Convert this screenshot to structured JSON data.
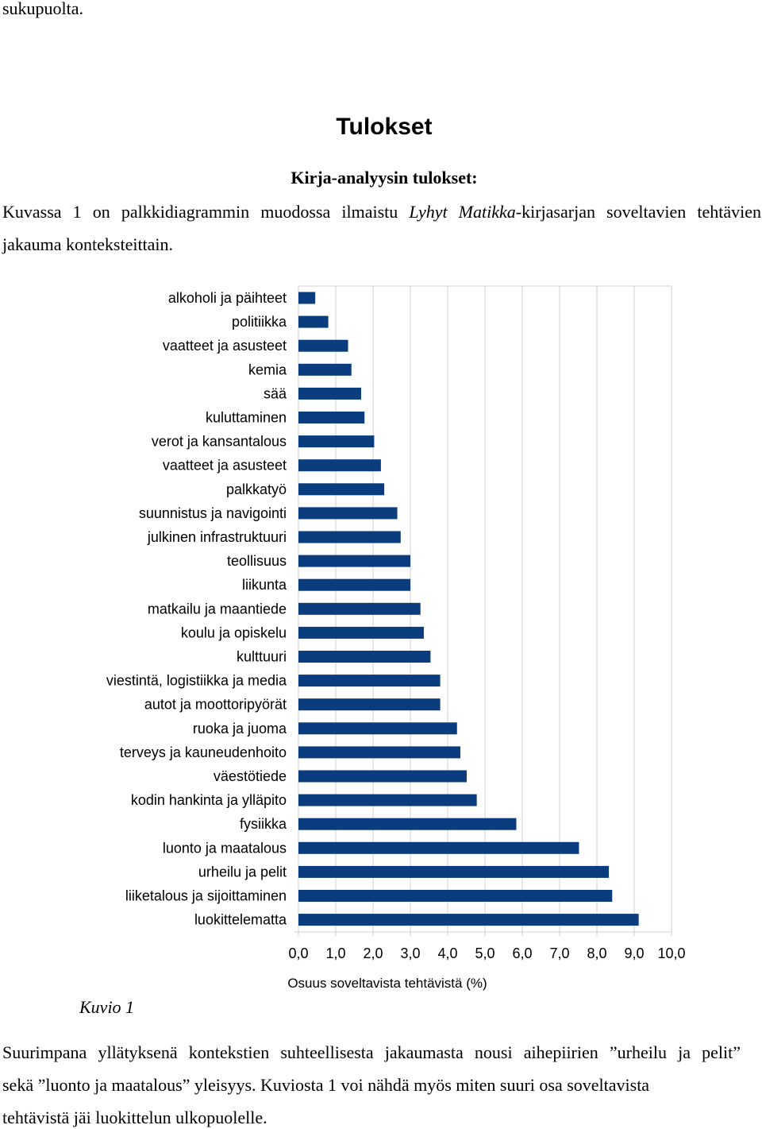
{
  "document": {
    "top_fragment": "sukupuolta.",
    "section_title": "Tulokset",
    "sub_heading": "Kirja-analyysin tulokset:",
    "intro": {
      "before_series": "Kuvassa 1 on palkkidiagrammin muodossa ilmaistu ",
      "series_name": "Lyhyt Matikka",
      "after_series": "-kirjasarjan soveltavien tehtävien",
      "line2": "jakauma konteksteittain."
    },
    "figure_caption": "Kuvio 1",
    "conclusion": {
      "line1": "Suurimpana yllätyksenä kontekstien suhteellisesta jakaumasta nousi aihepiirien ”urheilu ja pelit”",
      "line2": "sekä ”luonto ja maatalous” yleisyys. Kuviosta 1 voi nähdä myös miten suuri osa soveltavista",
      "line3": "tehtävistä jäi luokittelun ulkopuolelle."
    }
  },
  "chart_data": {
    "type": "bar",
    "orientation": "horizontal",
    "bar_color": "#0b3c7d",
    "grid_color": "#d0d0d0",
    "xlabel": "Osuus soveltavista tehtävistä (%)",
    "xlim": [
      0,
      10
    ],
    "x_ticks": [
      "0,0",
      "1,0",
      "2,0",
      "3,0",
      "4,0",
      "5,0",
      "6,0",
      "7,0",
      "8,0",
      "9,0",
      "10,0"
    ],
    "categories": [
      "alkoholi ja päihteet",
      "politiikka",
      "vaatteet ja asusteet",
      "kemia",
      "sää",
      "kuluttaminen",
      "verot ja kansantalous",
      "vaatteet ja asusteet",
      "palkkatyö",
      "suunnistus ja navigointi",
      "julkinen infrastruktuuri",
      "teollisuus",
      "liikunta",
      "matkailu ja maantiede",
      "koulu ja opiskelu",
      "kulttuuri",
      "viestintä, logistiikka ja media",
      "autot ja moottoripyörät",
      "ruoka ja juoma",
      "terveys ja kauneudenhoito",
      "väestötiede",
      "kodin hankinta ja ylläpito",
      "fysiikka",
      "luonto ja maatalous",
      "urheilu ja pelit",
      "liiketalous ja sijoittaminen",
      "luokittelematta"
    ],
    "values": [
      0.45,
      0.8,
      1.33,
      1.42,
      1.68,
      1.77,
      2.03,
      2.21,
      2.3,
      2.65,
      2.74,
      3.0,
      3.0,
      3.27,
      3.36,
      3.54,
      3.8,
      3.8,
      4.25,
      4.34,
      4.51,
      4.78,
      5.84,
      7.52,
      8.32,
      8.41,
      9.12
    ]
  }
}
